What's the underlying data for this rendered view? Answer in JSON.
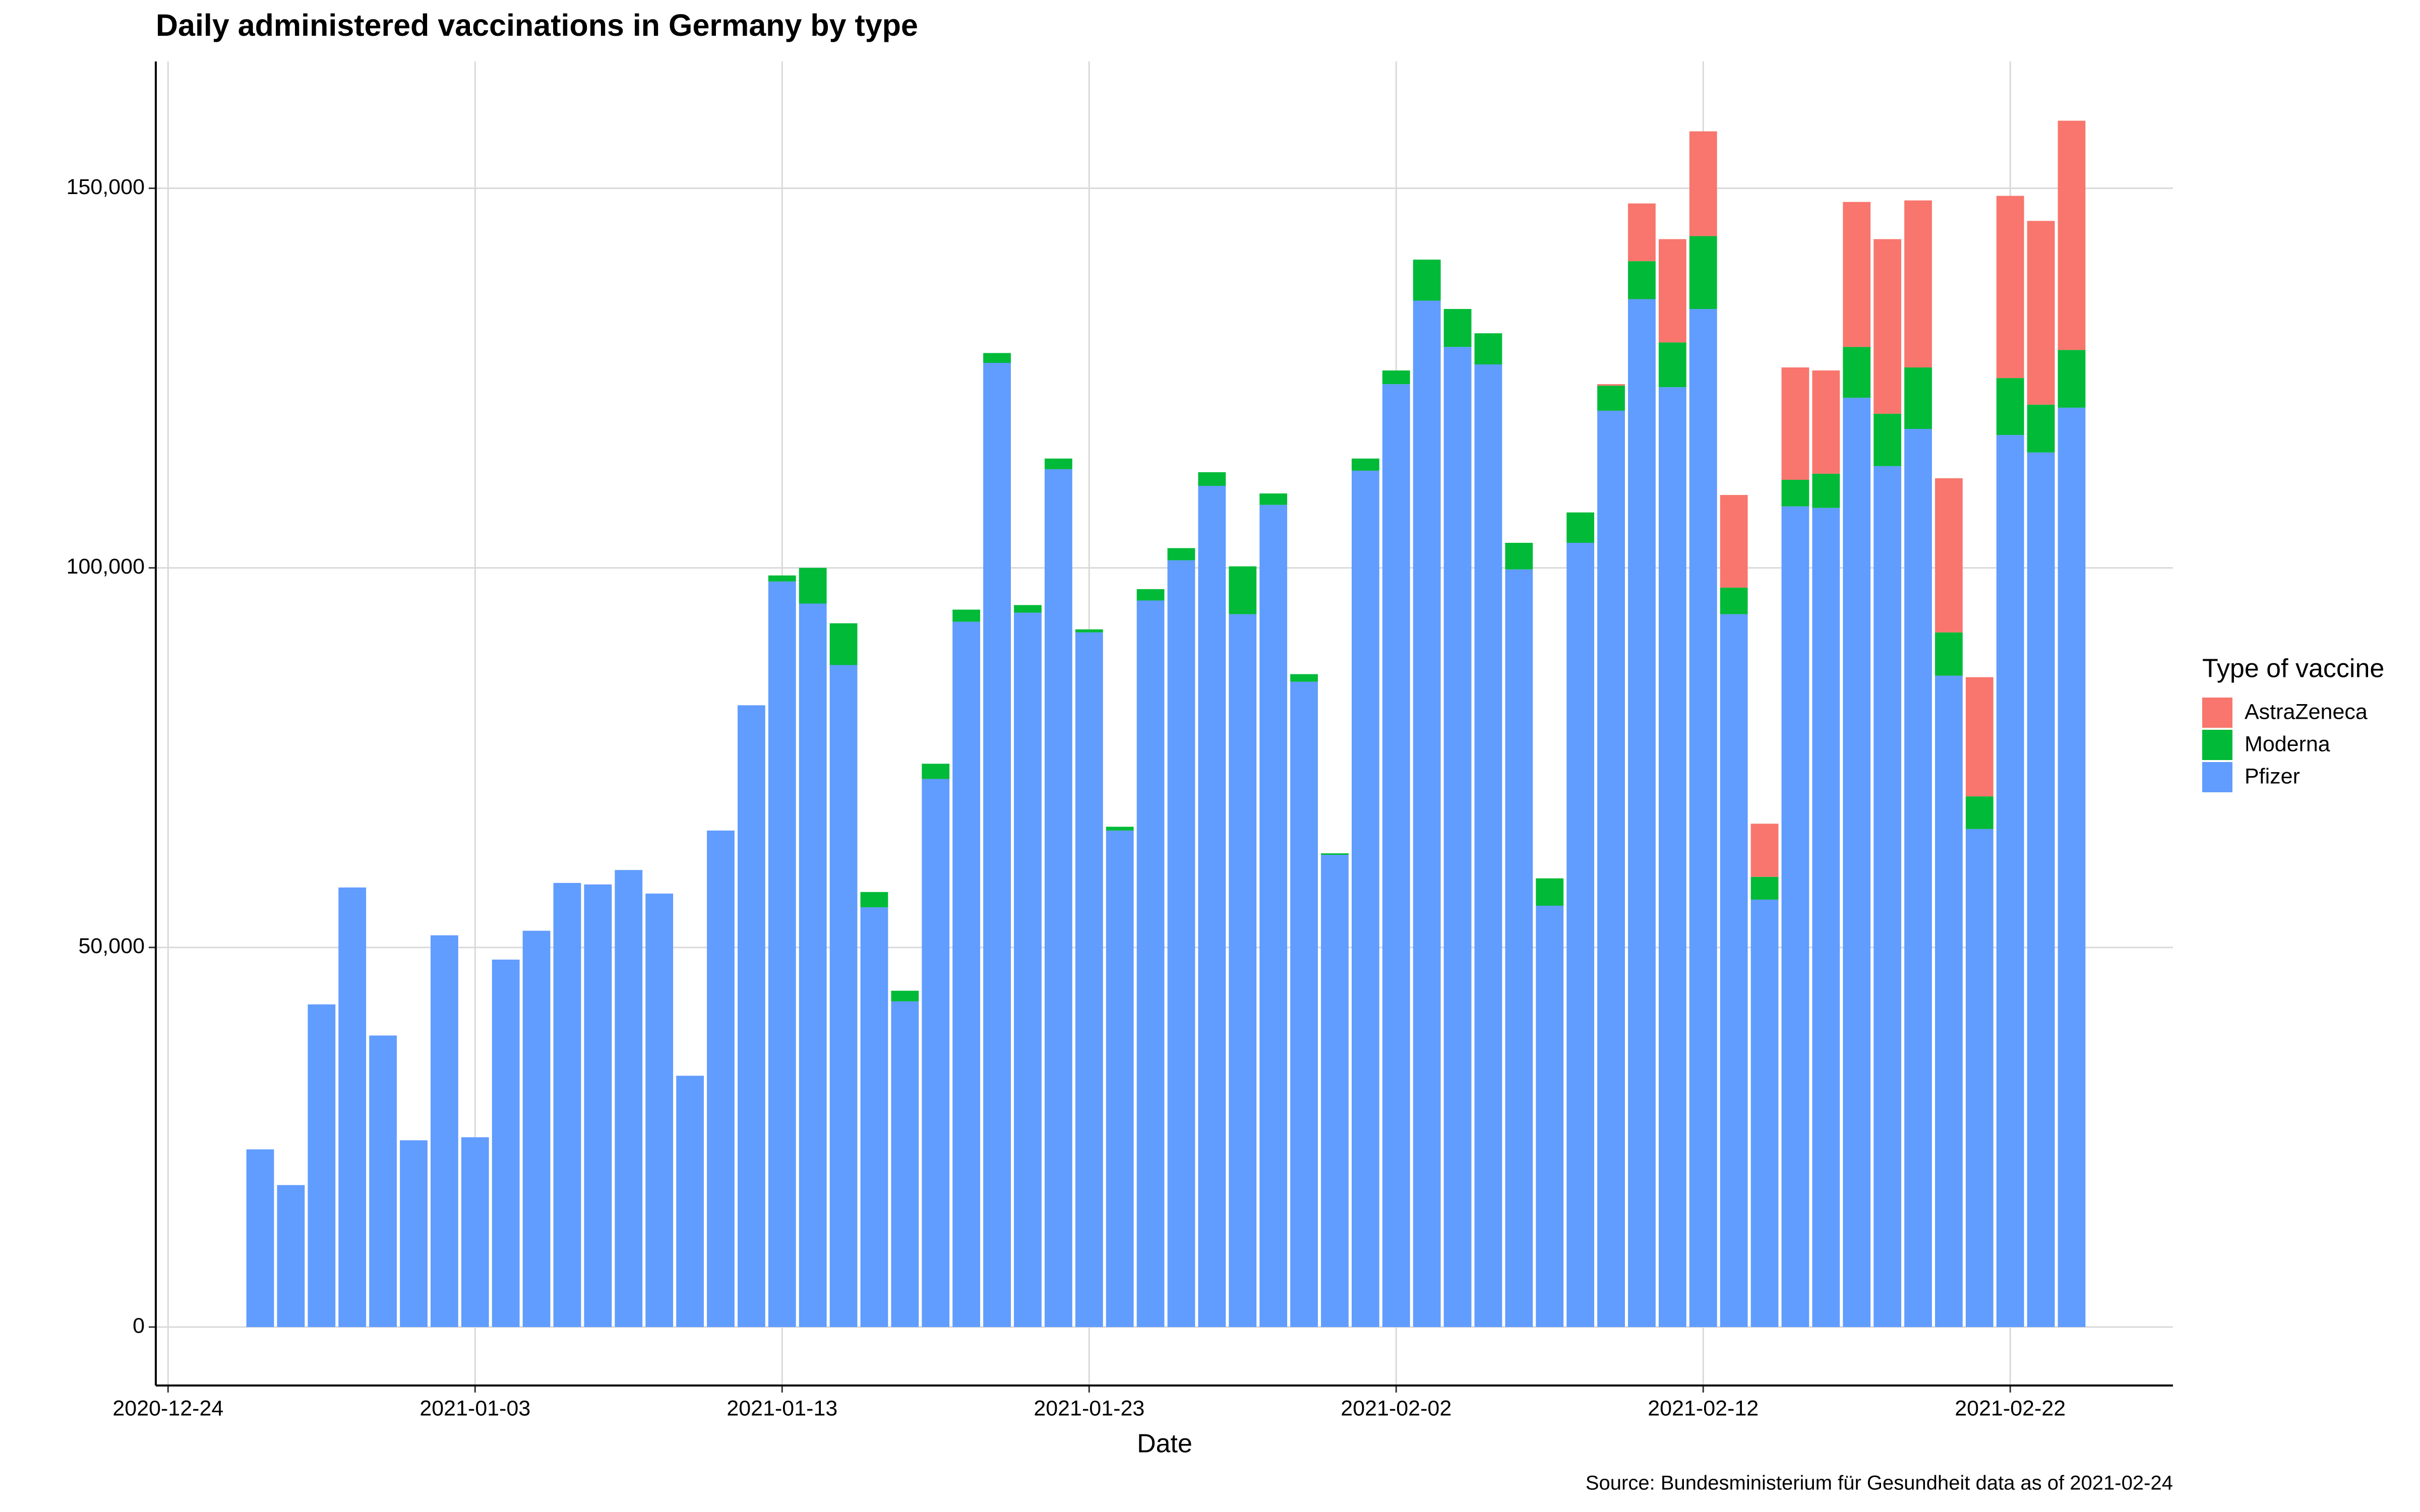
{
  "chart_data": {
    "type": "stacked-bar",
    "title": "Daily administered vaccinations in Germany by type",
    "x_label": "Date",
    "legend_title": "Type of vaccine",
    "caption": "Source: Bundesministerium für Gesundheit data as of 2021-02-24",
    "legend_position": "right",
    "grid": true,
    "x": [
      "2020-12-27",
      "2020-12-28",
      "2020-12-29",
      "2020-12-30",
      "2020-12-31",
      "2021-01-01",
      "2021-01-02",
      "2021-01-03",
      "2021-01-04",
      "2021-01-05",
      "2021-01-06",
      "2021-01-07",
      "2021-01-08",
      "2021-01-09",
      "2021-01-10",
      "2021-01-11",
      "2021-01-12",
      "2021-01-13",
      "2021-01-14",
      "2021-01-15",
      "2021-01-16",
      "2021-01-17",
      "2021-01-18",
      "2021-01-19",
      "2021-01-20",
      "2021-01-21",
      "2021-01-22",
      "2021-01-23",
      "2021-01-24",
      "2021-01-25",
      "2021-01-26",
      "2021-01-27",
      "2021-01-28",
      "2021-01-29",
      "2021-01-30",
      "2021-01-31",
      "2021-02-01",
      "2021-02-02",
      "2021-02-03",
      "2021-02-04",
      "2021-02-05",
      "2021-02-06",
      "2021-02-07",
      "2021-02-08",
      "2021-02-09",
      "2021-02-10",
      "2021-02-11",
      "2021-02-12",
      "2021-02-13",
      "2021-02-14",
      "2021-02-15",
      "2021-02-16",
      "2021-02-17",
      "2021-02-18",
      "2021-02-19",
      "2021-02-20",
      "2021-02-21",
      "2021-02-22",
      "2021-02-23",
      "2021-02-24"
    ],
    "series": [
      {
        "name": "AstraZeneca",
        "color": "#F8766D",
        "values": [
          null,
          null,
          null,
          null,
          null,
          null,
          null,
          null,
          null,
          null,
          null,
          null,
          null,
          null,
          null,
          null,
          null,
          null,
          null,
          null,
          null,
          null,
          null,
          null,
          null,
          null,
          null,
          null,
          null,
          null,
          null,
          null,
          null,
          null,
          null,
          null,
          null,
          null,
          null,
          null,
          null,
          null,
          null,
          null,
          200,
          7600,
          13600,
          13800,
          12200,
          7000,
          14800,
          13600,
          19100,
          23000,
          22000,
          20300,
          15700,
          24000,
          24200,
          30200
        ]
      },
      {
        "name": "Moderna",
        "color": "#00BA38",
        "values": [
          null,
          null,
          null,
          null,
          null,
          null,
          null,
          null,
          null,
          null,
          null,
          null,
          null,
          null,
          null,
          null,
          null,
          800,
          4700,
          5500,
          2000,
          1400,
          2000,
          1600,
          1300,
          1000,
          1400,
          400,
          500,
          1500,
          1600,
          1800,
          6300,
          1500,
          1000,
          200,
          1600,
          1800,
          5400,
          5000,
          4100,
          3500,
          3600,
          4000,
          3300,
          5000,
          5900,
          9600,
          3500,
          3000,
          3500,
          4500,
          6700,
          6900,
          8100,
          5700,
          4300,
          7500,
          6300,
          7600
        ]
      },
      {
        "name": "Pfizer",
        "color": "#619CFF",
        "values": [
          23400,
          18700,
          42500,
          57900,
          38400,
          24600,
          51600,
          25000,
          48400,
          52200,
          58500,
          58300,
          60200,
          57100,
          33100,
          65400,
          81900,
          98200,
          95300,
          87200,
          55300,
          42900,
          72200,
          92900,
          127000,
          94100,
          113000,
          91500,
          65400,
          95700,
          101000,
          110800,
          93900,
          108300,
          85000,
          62200,
          112800,
          124200,
          135200,
          129100,
          126800,
          99800,
          55500,
          103300,
          120700,
          135400,
          123800,
          134100,
          93900,
          56300,
          108100,
          107900,
          122400,
          113400,
          118300,
          85800,
          65600,
          117500,
          115200,
          121100
        ]
      }
    ],
    "xlim": [
      "2020-12-24",
      "2021-02-27"
    ],
    "xticks": [
      "2020-12-24",
      "2021-01-03",
      "2021-01-13",
      "2021-01-23",
      "2021-02-02",
      "2021-02-12",
      "2021-02-22"
    ],
    "ylim": [
      -7700,
      166700
    ],
    "yticks": [
      0,
      {
        "value": 50000,
        "label": "50,000"
      },
      {
        "value": 100000,
        "label": "100,000"
      },
      {
        "value": 150000,
        "label": "150,000"
      }
    ]
  }
}
